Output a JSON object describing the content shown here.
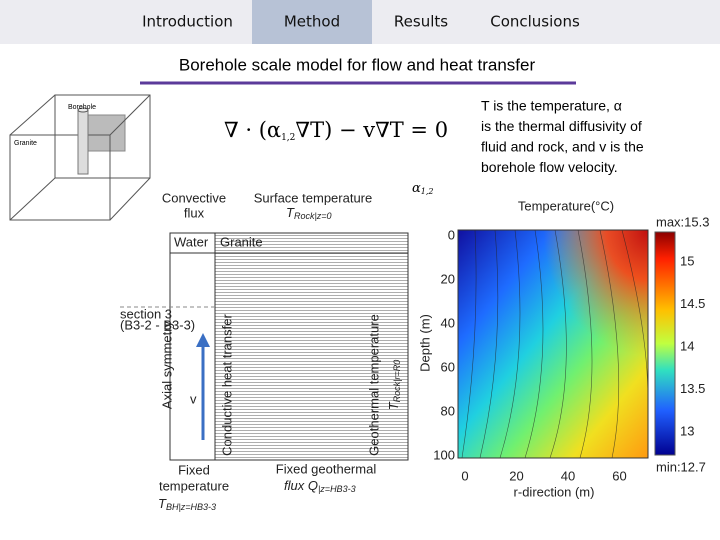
{
  "nav": {
    "tabs": [
      "Introduction",
      "Method",
      "Results",
      "Conclusions"
    ],
    "active": 1
  },
  "title": "Borehole scale model for flow and heat transfer",
  "box": {
    "borehole": "Borehole",
    "granite": "Granite"
  },
  "equation": {
    "pre": "∇ · (α",
    "sub": "1,2",
    "post": "∇T) − v∇T = 0"
  },
  "description": [
    "T is the temperature, α",
    "is the thermal diffusivity of",
    "fluid and rock,  and v is the",
    "borehole flow velocity."
  ],
  "alpha_label": {
    "main": "α",
    "sub": "1,2"
  },
  "model": {
    "convective": [
      "Convective",
      "flux"
    ],
    "surface": "Surface temperature",
    "surface_t": {
      "main": "T",
      "sub": "Rock|z=0"
    },
    "water": "Water",
    "granite": "Granite",
    "section": [
      "section 3",
      "(B3-2 - B3-3)"
    ],
    "velocity": "v",
    "axial": "Axial symmetry",
    "conductive": "Conductive heat transfer",
    "geothermal": "Geothermal temperature",
    "geothermal_t": {
      "main": "T",
      "sub": "Rock|r=R0"
    },
    "fixed_temp": [
      "Fixed",
      "temperature"
    ],
    "fixed_temp_t": {
      "main": "T",
      "sub": "BH|z=HB3-3"
    },
    "fixed_flux": "Fixed geothermal",
    "fixed_flux_q": {
      "main": "flux Q",
      "sub": "|z=HB3-3"
    }
  },
  "heatmap": {
    "title": "Temperature(°C)",
    "ylabel": "Depth (m)",
    "xlabel": "r-direction (m)",
    "yticks": [
      0,
      20,
      40,
      60,
      80,
      100
    ],
    "xticks": [
      0,
      20,
      40,
      60
    ],
    "max_label": "max:15.3",
    "min_label": "min:12.7",
    "colorbar_ticks": [
      15,
      14.5,
      14,
      13.5,
      13
    ]
  }
}
